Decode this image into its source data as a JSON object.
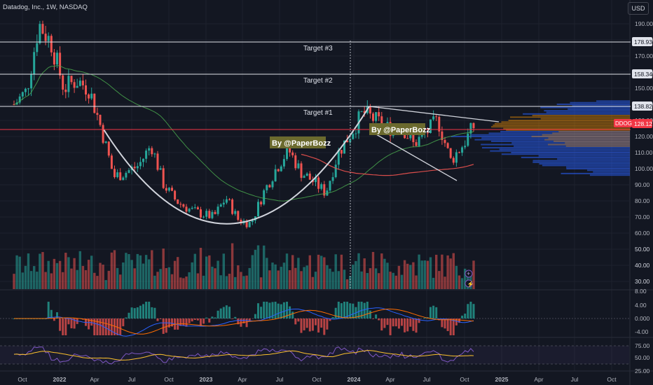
{
  "header": {
    "title": "Datadog, Inc., 1W, NASDAQ",
    "currency": "USD"
  },
  "colors": {
    "background": "#131722",
    "up": "#26a69a",
    "down": "#ef5350",
    "trendline": "#d1d4dc",
    "target_line": "#e0e3eb",
    "current_price_line": "#f23645",
    "ma_red": "#ef5350",
    "ma_green": "#4caf50",
    "label_bg": "#6b6a2e",
    "profile_blue": "#2962ff",
    "profile_orange": "#ff9800",
    "macd_line": "#2962ff",
    "signal_line": "#ff6d00",
    "rsi_line": "#7e57c2",
    "rsi_ma": "#fbc02d"
  },
  "annotations": {
    "target1": "Target #1",
    "target2": "Target #2",
    "target3": "Target #3",
    "watermark1": "By @PaperBozz",
    "watermark2": "By @PaperBozz"
  },
  "chart_data": [
    {
      "type": "candlestick",
      "symbol": "DDOG",
      "interval": "1W",
      "exchange": "NASDAQ",
      "x_tick_labels": [
        "Oct",
        "2022",
        "Apr",
        "Jul",
        "Oct",
        "2023",
        "Apr",
        "Jul",
        "Oct",
        "2024",
        "Apr",
        "Jul",
        "Oct",
        "2025",
        "Apr",
        "Jul",
        "Oct"
      ],
      "y_tick_labels": [
        190,
        180,
        170,
        160,
        150,
        140,
        130,
        120,
        110,
        100,
        90,
        80,
        70,
        60,
        50,
        40,
        30
      ],
      "price_tags": [
        {
          "label": "178.93",
          "value": 178.93
        },
        {
          "label": "158.34",
          "value": 158.34
        },
        {
          "label": "138.82",
          "value": 138.82
        }
      ],
      "current_price": {
        "symbol": "DDOG",
        "value": "128.12"
      },
      "targets": [
        {
          "name": "Target #1",
          "price": 138.82
        },
        {
          "name": "Target #2",
          "price": 158.34
        },
        {
          "name": "Target #3",
          "price": 178.93
        }
      ],
      "price_path": [
        {
          "date": "2021-09",
          "price": 140
        },
        {
          "date": "2021-10",
          "price": 148
        },
        {
          "date": "2021-11",
          "price": 190
        },
        {
          "date": "2021-12",
          "price": 178
        },
        {
          "date": "2022-01",
          "price": 150
        },
        {
          "date": "2022-02",
          "price": 155
        },
        {
          "date": "2022-03",
          "price": 150
        },
        {
          "date": "2022-04",
          "price": 125
        },
        {
          "date": "2022-05",
          "price": 95
        },
        {
          "date": "2022-06",
          "price": 98
        },
        {
          "date": "2022-07",
          "price": 102
        },
        {
          "date": "2022-08",
          "price": 115
        },
        {
          "date": "2022-09",
          "price": 90
        },
        {
          "date": "2022-10",
          "price": 80
        },
        {
          "date": "2022-11",
          "price": 75
        },
        {
          "date": "2022-12",
          "price": 72
        },
        {
          "date": "2023-01",
          "price": 70
        },
        {
          "date": "2023-02",
          "price": 82
        },
        {
          "date": "2023-03",
          "price": 68
        },
        {
          "date": "2023-04",
          "price": 66
        },
        {
          "date": "2023-05",
          "price": 85
        },
        {
          "date": "2023-06",
          "price": 100
        },
        {
          "date": "2023-07",
          "price": 112
        },
        {
          "date": "2023-08",
          "price": 98
        },
        {
          "date": "2023-09",
          "price": 92
        },
        {
          "date": "2023-10",
          "price": 85
        },
        {
          "date": "2023-11",
          "price": 110
        },
        {
          "date": "2023-12",
          "price": 122
        },
        {
          "date": "2024-01",
          "price": 135
        },
        {
          "date": "2024-02",
          "price": 130
        },
        {
          "date": "2024-03",
          "price": 125
        },
        {
          "date": "2024-04",
          "price": 128
        },
        {
          "date": "2024-05",
          "price": 115
        },
        {
          "date": "2024-06",
          "price": 122
        },
        {
          "date": "2024-07",
          "price": 130
        },
        {
          "date": "2024-08",
          "price": 105
        },
        {
          "date": "2024-09",
          "price": 115
        },
        {
          "date": "2024-10",
          "price": 128
        }
      ],
      "volume_axis": [
        50,
        40,
        30
      ],
      "macd_axis": [
        "8.00",
        "4.00",
        "0.000",
        "-4.00"
      ],
      "rsi_axis": [
        "75.00",
        "50.00",
        "25.00"
      ]
    }
  ]
}
